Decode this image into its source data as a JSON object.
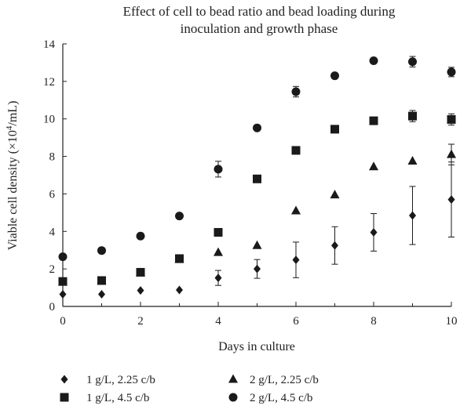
{
  "chart_data": {
    "type": "scatter",
    "title_lines": [
      "Effect of cell to bead ratio and bead loading during",
      "inoculation and growth phase"
    ],
    "xlabel": "Days in culture",
    "ylabel_main": "Viable cell density (×10",
    "ylabel_sup": "4",
    "ylabel_tail": "/mL)",
    "xlim": [
      0,
      10
    ],
    "ylim": [
      0,
      14
    ],
    "xticks": [
      0,
      2,
      4,
      6,
      8,
      10
    ],
    "yticks": [
      0,
      2,
      4,
      6,
      8,
      10,
      12,
      14
    ],
    "grid": false,
    "legend_position": "bottom",
    "series": [
      {
        "name": "1 g/L, 2.25 c/b",
        "marker": "diamond",
        "x": [
          0,
          1,
          2,
          3,
          4,
          5,
          6,
          7,
          8,
          9,
          10
        ],
        "y": [
          0.65,
          0.65,
          0.85,
          0.88,
          1.52,
          2.0,
          2.48,
          3.25,
          3.95,
          4.85,
          5.7
        ],
        "err": [
          0,
          0,
          0,
          0,
          0.4,
          0.5,
          0.95,
          1.0,
          1.0,
          1.55,
          2.0
        ]
      },
      {
        "name": "2 g/L, 2.25 c/b",
        "marker": "triangle",
        "x": [
          0,
          1,
          2,
          3,
          4,
          5,
          6,
          7,
          8,
          9,
          10
        ],
        "y": [
          1.3,
          1.35,
          1.8,
          2.5,
          2.88,
          3.25,
          5.1,
          5.95,
          7.45,
          7.75,
          8.1
        ],
        "err": [
          0,
          0,
          0,
          0,
          0,
          0,
          0,
          0,
          0,
          0,
          0.55
        ]
      },
      {
        "name": "1 g/L, 4.5 c/b",
        "marker": "square",
        "x": [
          0,
          1,
          2,
          3,
          4,
          5,
          6,
          7,
          8,
          9,
          10
        ],
        "y": [
          1.33,
          1.38,
          1.82,
          2.55,
          3.95,
          6.8,
          8.32,
          9.45,
          9.9,
          10.15,
          9.97
        ],
        "err": [
          0,
          0,
          0,
          0,
          0,
          0.12,
          0,
          0,
          0,
          0.3,
          0.3
        ]
      },
      {
        "name": "2 g/L, 4.5 c/b",
        "marker": "circle",
        "x": [
          0,
          1,
          2,
          3,
          4,
          5,
          6,
          7,
          8,
          9,
          10
        ],
        "y": [
          2.65,
          2.98,
          3.75,
          4.82,
          7.32,
          9.52,
          11.45,
          12.3,
          13.1,
          13.05,
          12.5
        ],
        "err": [
          0,
          0,
          0,
          0,
          0.42,
          0,
          0.28,
          0,
          0,
          0.28,
          0.25
        ]
      }
    ],
    "legend_order": [
      [
        "1 g/L, 2.25 c/b",
        "2 g/L, 2.25 c/b"
      ],
      [
        "1 g/L, 4.5 c/b",
        "2 g/L, 4.5 c/b"
      ]
    ],
    "colors": {
      "marker": "#1a1a1a",
      "axis": "#222222"
    }
  }
}
